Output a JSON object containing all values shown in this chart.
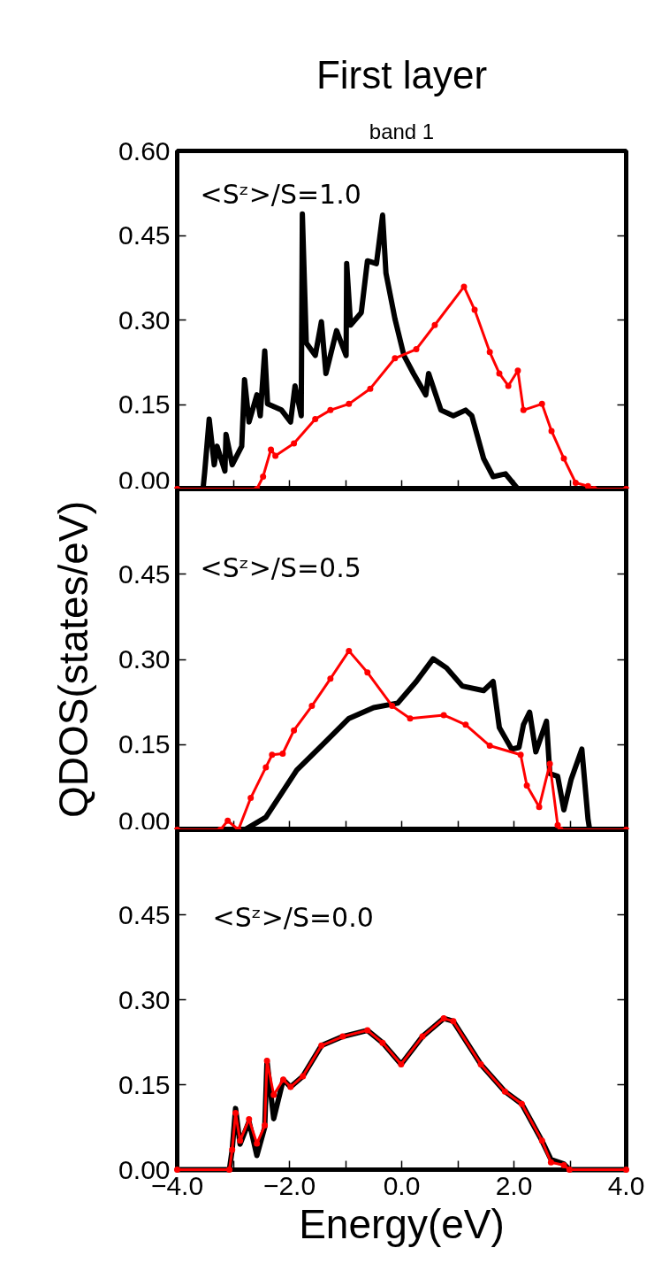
{
  "chart_data": [
    {
      "type": "line",
      "title": "First layer",
      "subtitle": "band 1",
      "annotations": [
        "<Sᶻ>/S=1.0"
      ],
      "xlim": [
        -4,
        4
      ],
      "ylim": [
        0,
        0.6
      ],
      "xticks": [
        {
          "value": -4,
          "label": null
        },
        {
          "value": -3,
          "label": null
        },
        {
          "value": -2,
          "label": null
        },
        {
          "value": -1,
          "label": null
        },
        {
          "value": 0,
          "label": null
        },
        {
          "value": 1,
          "label": null
        },
        {
          "value": 2,
          "label": null
        },
        {
          "value": 3,
          "label": null
        },
        {
          "value": 4,
          "label": null
        }
      ],
      "yticks": [
        {
          "value": 0,
          "label": "0.00"
        },
        {
          "value": 0.15,
          "label": "0.15"
        },
        {
          "value": 0.3,
          "label": "0.30"
        },
        {
          "value": 0.45,
          "label": "0.45"
        },
        {
          "value": 0.6,
          "label": "0.60"
        }
      ],
      "tick_labels": "y",
      "grid": false,
      "series": [
        {
          "color": "#000000",
          "marker": "none",
          "x": [
            -4,
            -3.54,
            -3.51,
            -3.43,
            -3.34,
            -3.29,
            -3.15,
            -3.13,
            -3.02,
            -2.85,
            -2.8,
            -2.72,
            -2.58,
            -2.52,
            -2.44,
            -2.39,
            -2.14,
            -1.98,
            -1.9,
            -1.79,
            -1.77,
            -1.7,
            -1.54,
            -1.43,
            -1.35,
            -1.16,
            -0.99,
            -0.98,
            -0.91,
            -0.72,
            -0.61,
            -0.45,
            -0.34,
            -0.28,
            -0.12,
            0.04,
            0.21,
            0.43,
            0.48,
            0.7,
            0.92,
            1.14,
            1.25,
            1.46,
            1.63,
            1.85,
            2.07,
            4
          ],
          "values": [
            0,
            0,
            0.03,
            0.124,
            0.043,
            0.076,
            0.032,
            0.097,
            0.043,
            0.076,
            0.194,
            0.119,
            0.167,
            0.13,
            0.245,
            0.151,
            0.14,
            0.119,
            0.183,
            0.13,
            0.488,
            0.259,
            0.237,
            0.297,
            0.205,
            0.281,
            0.237,
            0.4,
            0.291,
            0.313,
            0.405,
            0.4,
            0.486,
            0.383,
            0.302,
            0.237,
            0.205,
            0.167,
            0.205,
            0.14,
            0.13,
            0.14,
            0.13,
            0.054,
            0.022,
            0.027,
            0,
            0
          ]
        },
        {
          "color": "#ff0000",
          "marker": "circle",
          "x": [
            -4,
            -2.58,
            -2.47,
            -2.33,
            -2.25,
            -1.92,
            -1.54,
            -1.27,
            -0.94,
            -0.56,
            -0.12,
            0.26,
            0.59,
            1.11,
            1.3,
            1.57,
            1.74,
            1.9,
            2.07,
            2.17,
            2.5,
            2.67,
            2.89,
            3.1,
            3.32,
            3.43,
            4
          ],
          "values": [
            0,
            0,
            0.022,
            0.07,
            0.059,
            0.081,
            0.124,
            0.14,
            0.151,
            0.178,
            0.232,
            0.248,
            0.291,
            0.359,
            0.318,
            0.243,
            0.205,
            0.183,
            0.21,
            0.14,
            0.151,
            0.103,
            0.054,
            0.011,
            0.005,
            0,
            0
          ]
        }
      ]
    },
    {
      "type": "line",
      "ylabel": "QDOS(states/eV)",
      "annotations": [
        "<Sᶻ>/S=0.5"
      ],
      "xlim": [
        -4,
        4
      ],
      "ylim": [
        0,
        0.6
      ],
      "xticks": [
        {
          "value": -4,
          "label": null
        },
        {
          "value": -3,
          "label": null
        },
        {
          "value": -2,
          "label": null
        },
        {
          "value": -1,
          "label": null
        },
        {
          "value": 0,
          "label": null
        },
        {
          "value": 1,
          "label": null
        },
        {
          "value": 2,
          "label": null
        },
        {
          "value": 3,
          "label": null
        },
        {
          "value": 4,
          "label": null
        }
      ],
      "yticks": [
        {
          "value": 0,
          "label": "0.00"
        },
        {
          "value": 0.15,
          "label": "0.15"
        },
        {
          "value": 0.3,
          "label": "0.30"
        },
        {
          "value": 0.45,
          "label": "0.45"
        },
        {
          "value": 0.6,
          "label": null
        }
      ],
      "tick_labels": "y",
      "grid": false,
      "series": [
        {
          "color": "#000000",
          "marker": "none",
          "x": [
            -4,
            -2.8,
            -2.42,
            -1.87,
            -1.43,
            -0.94,
            -0.5,
            -0.07,
            0.26,
            0.56,
            0.8,
            1.08,
            1.46,
            1.63,
            1.74,
            1.96,
            2.09,
            2.17,
            2.28,
            2.39,
            2.58,
            2.64,
            2.78,
            2.89,
            3.02,
            3.21,
            3.32,
            3.35,
            4
          ],
          "values": [
            0,
            0,
            0.022,
            0.105,
            0.148,
            0.196,
            0.215,
            0.223,
            0.261,
            0.301,
            0.285,
            0.253,
            0.245,
            0.261,
            0.18,
            0.142,
            0.145,
            0.185,
            0.207,
            0.137,
            0.191,
            0.099,
            0.094,
            0.035,
            0.089,
            0.142,
            0.019,
            0,
            0
          ]
        },
        {
          "color": "#ff0000",
          "marker": "circle",
          "x": [
            -4,
            -3.23,
            -3.1,
            -2.91,
            -2.69,
            -2.42,
            -2.31,
            -2.12,
            -1.92,
            -1.6,
            -1.27,
            -0.94,
            -0.61,
            -0.17,
            0.15,
            0.75,
            1.14,
            1.57,
            2.12,
            2.23,
            2.45,
            2.64,
            2.78,
            2.83,
            4
          ],
          "values": [
            0,
            0,
            0.016,
            0,
            0.056,
            0.11,
            0.132,
            0.134,
            0.175,
            0.218,
            0.266,
            0.315,
            0.277,
            0.218,
            0.196,
            0.202,
            0.185,
            0.148,
            0.132,
            0.078,
            0.04,
            0.116,
            0.008,
            0,
            0
          ]
        }
      ]
    },
    {
      "type": "line",
      "xlabel": "Energy(eV)",
      "annotations": [
        "<Sᶻ>/S=0.0"
      ],
      "xlim": [
        -4,
        4
      ],
      "ylim": [
        0,
        0.6
      ],
      "xticks": [
        {
          "value": -4,
          "label": "−4.0"
        },
        {
          "value": -3,
          "label": null
        },
        {
          "value": -2,
          "label": "−2.0"
        },
        {
          "value": -1,
          "label": null
        },
        {
          "value": 0,
          "label": "0.0"
        },
        {
          "value": 1,
          "label": null
        },
        {
          "value": 2,
          "label": "2.0"
        },
        {
          "value": 3,
          "label": null
        },
        {
          "value": 4,
          "label": "4.0"
        }
      ],
      "yticks": [
        {
          "value": 0,
          "label": "0.00"
        },
        {
          "value": 0.15,
          "label": "0.15"
        },
        {
          "value": 0.3,
          "label": "0.30"
        },
        {
          "value": 0.45,
          "label": "0.45"
        },
        {
          "value": 0.6,
          "label": null
        }
      ],
      "grid": false,
      "series": [
        {
          "color": "#000000",
          "marker": "none",
          "x": [
            -4,
            -3.07,
            -3.02,
            -2.96,
            -2.88,
            -2.72,
            -2.58,
            -2.44,
            -2.4,
            -2.28,
            -2.11,
            -1.98,
            -1.76,
            -1.43,
            -1.05,
            -0.61,
            -0.34,
            -0.01,
            0.37,
            0.75,
            0.92,
            1.41,
            1.84,
            2.14,
            2.5,
            2.66,
            2.89,
            2.99,
            4
          ],
          "values": [
            0,
            0,
            0.035,
            0.108,
            0.045,
            0.085,
            0.025,
            0.075,
            0.192,
            0.09,
            0.159,
            0.146,
            0.165,
            0.219,
            0.235,
            0.246,
            0.224,
            0.186,
            0.235,
            0.267,
            0.262,
            0.186,
            0.138,
            0.116,
            0.051,
            0.018,
            0.01,
            0,
            0
          ]
        },
        {
          "color": "#ff0000",
          "marker": "circle",
          "x": [
            -4,
            -3.07,
            -3.02,
            -2.96,
            -2.88,
            -2.72,
            -2.58,
            -2.44,
            -2.4,
            -2.28,
            -2.11,
            -1.98,
            -1.76,
            -1.43,
            -1.05,
            -0.61,
            -0.34,
            -0.01,
            0.37,
            0.75,
            0.92,
            1.41,
            1.84,
            2.14,
            2.5,
            2.66,
            2.89,
            2.99,
            4
          ],
          "values": [
            0,
            0,
            0.035,
            0.1,
            0.051,
            0.089,
            0.046,
            0.078,
            0.192,
            0.132,
            0.159,
            0.146,
            0.165,
            0.219,
            0.235,
            0.246,
            0.224,
            0.186,
            0.235,
            0.267,
            0.262,
            0.186,
            0.138,
            0.116,
            0.051,
            0.013,
            0.008,
            0,
            0
          ]
        }
      ]
    }
  ]
}
